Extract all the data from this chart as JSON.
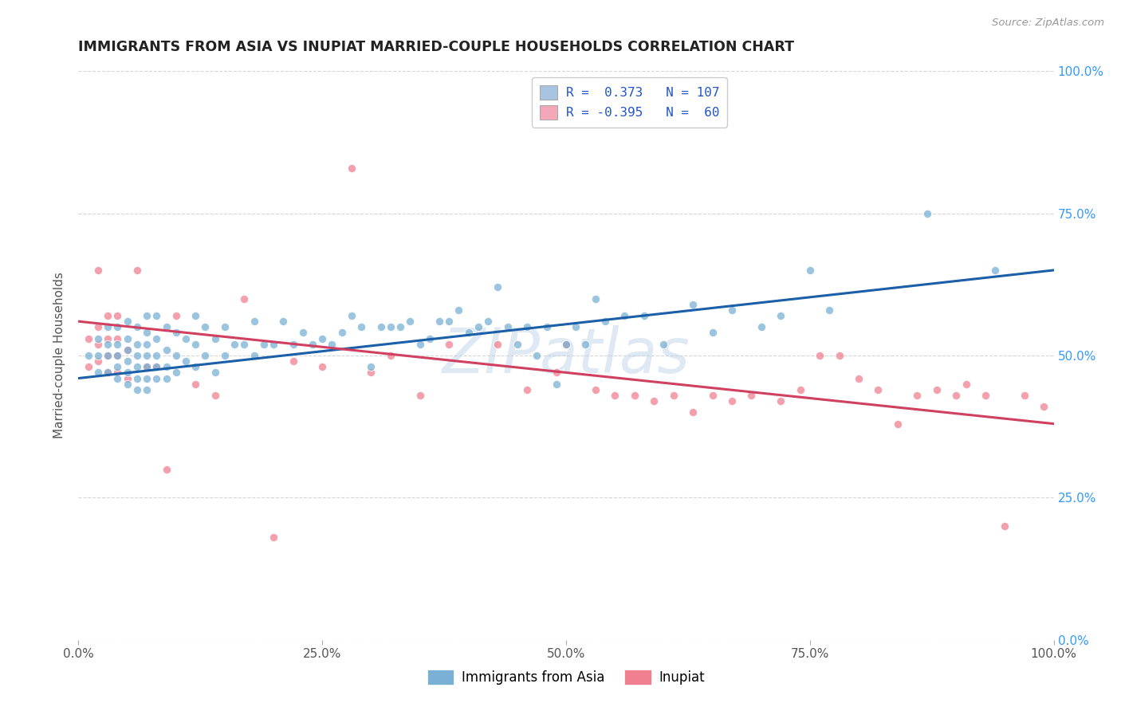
{
  "title": "IMMIGRANTS FROM ASIA VS INUPIAT MARRIED-COUPLE HOUSEHOLDS CORRELATION CHART",
  "source": "Source: ZipAtlas.com",
  "ylabel": "Married-couple Households",
  "xlim": [
    0.0,
    1.0
  ],
  "ylim": [
    0.0,
    1.0
  ],
  "xtick_positions": [
    0.0,
    0.25,
    0.5,
    0.75,
    1.0
  ],
  "xticklabels": [
    "0.0%",
    "25.0%",
    "50.0%",
    "75.0%",
    "100.0%"
  ],
  "ytick_positions": [
    0.0,
    0.25,
    0.5,
    0.75,
    1.0
  ],
  "ytick_labels_right": [
    "0.0%",
    "25.0%",
    "50.0%",
    "75.0%",
    "100.0%"
  ],
  "legend_label1": "R =  0.373   N = 107",
  "legend_label2": "R = -0.395   N =  60",
  "legend_color1": "#a8c4e0",
  "legend_color2": "#f4a7b9",
  "color_blue": "#7ab0d4",
  "color_pink": "#f08090",
  "line_color_blue": "#1a5fa8",
  "line_color_pink": "#d04060",
  "scatter_alpha": 0.75,
  "scatter_size": 55,
  "watermark": "ZIPatlas",
  "watermark_color": "#c0d4e8",
  "blue_line_x": [
    0.0,
    1.0
  ],
  "blue_line_y": [
    0.46,
    0.65
  ],
  "pink_line_x": [
    0.0,
    1.0
  ],
  "pink_line_y": [
    0.56,
    0.38
  ],
  "blue_points_x": [
    0.01,
    0.02,
    0.02,
    0.02,
    0.03,
    0.03,
    0.03,
    0.03,
    0.04,
    0.04,
    0.04,
    0.04,
    0.04,
    0.05,
    0.05,
    0.05,
    0.05,
    0.05,
    0.05,
    0.06,
    0.06,
    0.06,
    0.06,
    0.06,
    0.06,
    0.07,
    0.07,
    0.07,
    0.07,
    0.07,
    0.07,
    0.07,
    0.08,
    0.08,
    0.08,
    0.08,
    0.08,
    0.09,
    0.09,
    0.09,
    0.09,
    0.1,
    0.1,
    0.1,
    0.11,
    0.11,
    0.12,
    0.12,
    0.12,
    0.13,
    0.13,
    0.14,
    0.14,
    0.15,
    0.15,
    0.16,
    0.17,
    0.18,
    0.18,
    0.19,
    0.2,
    0.21,
    0.22,
    0.23,
    0.24,
    0.25,
    0.26,
    0.27,
    0.28,
    0.29,
    0.3,
    0.31,
    0.32,
    0.33,
    0.34,
    0.35,
    0.36,
    0.37,
    0.38,
    0.39,
    0.4,
    0.41,
    0.42,
    0.43,
    0.44,
    0.45,
    0.46,
    0.47,
    0.48,
    0.49,
    0.5,
    0.51,
    0.52,
    0.53,
    0.54,
    0.56,
    0.58,
    0.6,
    0.63,
    0.65,
    0.67,
    0.7,
    0.72,
    0.75,
    0.77,
    0.87,
    0.94
  ],
  "blue_points_y": [
    0.5,
    0.47,
    0.5,
    0.53,
    0.47,
    0.5,
    0.52,
    0.55,
    0.46,
    0.48,
    0.5,
    0.52,
    0.55,
    0.45,
    0.47,
    0.49,
    0.51,
    0.53,
    0.56,
    0.44,
    0.46,
    0.48,
    0.5,
    0.52,
    0.55,
    0.44,
    0.46,
    0.48,
    0.5,
    0.52,
    0.54,
    0.57,
    0.46,
    0.48,
    0.5,
    0.53,
    0.57,
    0.46,
    0.48,
    0.51,
    0.55,
    0.47,
    0.5,
    0.54,
    0.49,
    0.53,
    0.48,
    0.52,
    0.57,
    0.5,
    0.55,
    0.47,
    0.53,
    0.5,
    0.55,
    0.52,
    0.52,
    0.5,
    0.56,
    0.52,
    0.52,
    0.56,
    0.52,
    0.54,
    0.52,
    0.53,
    0.52,
    0.54,
    0.57,
    0.55,
    0.48,
    0.55,
    0.55,
    0.55,
    0.56,
    0.52,
    0.53,
    0.56,
    0.56,
    0.58,
    0.54,
    0.55,
    0.56,
    0.62,
    0.55,
    0.52,
    0.55,
    0.5,
    0.55,
    0.45,
    0.52,
    0.55,
    0.52,
    0.6,
    0.56,
    0.57,
    0.57,
    0.52,
    0.59,
    0.54,
    0.58,
    0.55,
    0.57,
    0.65,
    0.58,
    0.75,
    0.65
  ],
  "pink_points_x": [
    0.01,
    0.01,
    0.02,
    0.02,
    0.02,
    0.02,
    0.03,
    0.03,
    0.03,
    0.03,
    0.04,
    0.04,
    0.04,
    0.04,
    0.05,
    0.05,
    0.06,
    0.07,
    0.08,
    0.09,
    0.1,
    0.12,
    0.14,
    0.17,
    0.2,
    0.22,
    0.25,
    0.28,
    0.3,
    0.32,
    0.35,
    0.38,
    0.43,
    0.46,
    0.49,
    0.5,
    0.53,
    0.55,
    0.57,
    0.59,
    0.61,
    0.63,
    0.65,
    0.67,
    0.69,
    0.72,
    0.74,
    0.76,
    0.78,
    0.8,
    0.82,
    0.84,
    0.86,
    0.88,
    0.9,
    0.91,
    0.93,
    0.95,
    0.97,
    0.99
  ],
  "pink_points_y": [
    0.48,
    0.53,
    0.49,
    0.52,
    0.55,
    0.65,
    0.47,
    0.5,
    0.53,
    0.57,
    0.47,
    0.5,
    0.53,
    0.57,
    0.46,
    0.51,
    0.65,
    0.48,
    0.48,
    0.3,
    0.57,
    0.45,
    0.43,
    0.6,
    0.18,
    0.49,
    0.48,
    0.83,
    0.47,
    0.5,
    0.43,
    0.52,
    0.52,
    0.44,
    0.47,
    0.52,
    0.44,
    0.43,
    0.43,
    0.42,
    0.43,
    0.4,
    0.43,
    0.42,
    0.43,
    0.42,
    0.44,
    0.5,
    0.5,
    0.46,
    0.44,
    0.38,
    0.43,
    0.44,
    0.43,
    0.45,
    0.43,
    0.2,
    0.43,
    0.41
  ]
}
